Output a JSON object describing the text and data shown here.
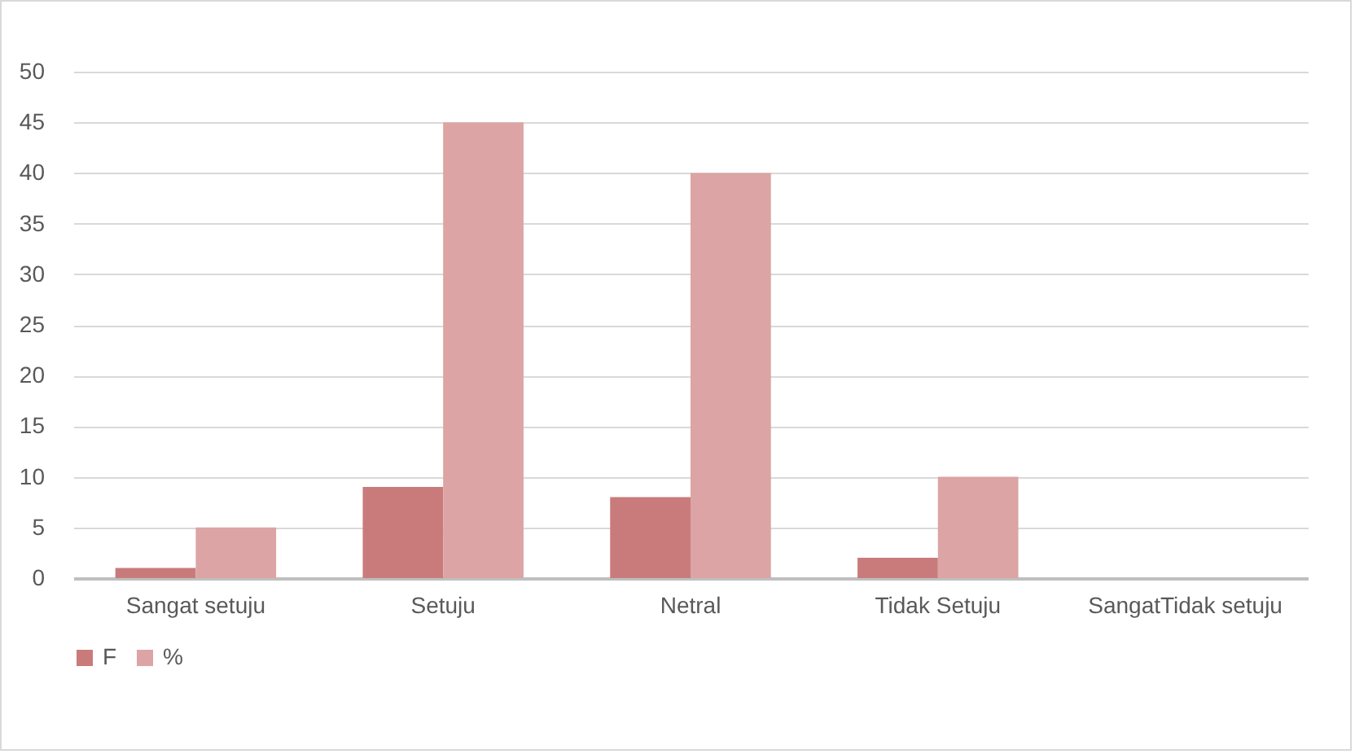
{
  "chart_data": {
    "type": "bar",
    "categories": [
      "Sangat  setuju",
      "Setuju",
      "Netral",
      "Tidak  Setuju",
      "SangatTidak setuju"
    ],
    "series": [
      {
        "name": "F",
        "color": "#c97b7b",
        "values": [
          1,
          9,
          8,
          2,
          0
        ]
      },
      {
        "name": "%",
        "color": "#dca4a4",
        "values": [
          5,
          45,
          40,
          10,
          0
        ]
      }
    ],
    "ylim": [
      0,
      50
    ],
    "yticks": [
      0,
      5,
      10,
      15,
      20,
      25,
      30,
      35,
      40,
      45,
      50
    ],
    "grid": "y",
    "legend": "bottom"
  }
}
